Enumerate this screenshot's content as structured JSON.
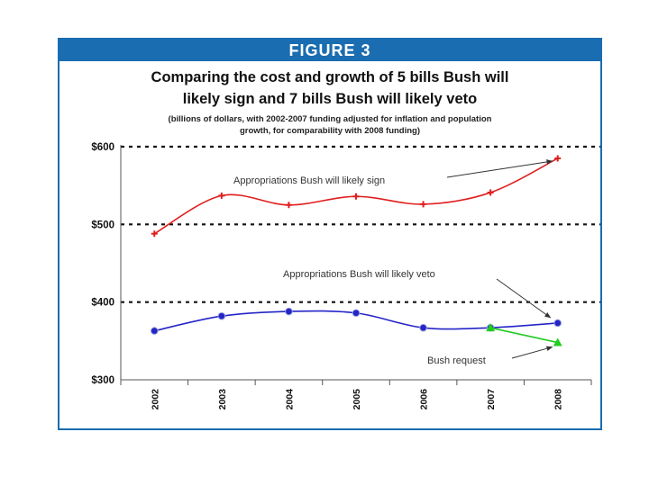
{
  "figure_label": "FIGURE 3",
  "chart_data": {
    "type": "line",
    "title_line1": "Comparing the cost and growth of 5 bills Bush will",
    "title_line2": "likely sign and 7 bills Bush will likely veto",
    "subtitle_line1": "(billions of dollars, with 2002-2007 funding adjusted for inflation and population",
    "subtitle_line2": "growth, for comparability with 2008 funding)",
    "x": [
      "2002",
      "2003",
      "2004",
      "2005",
      "2006",
      "2007",
      "2008"
    ],
    "ylim": [
      300,
      600
    ],
    "yticks": [
      {
        "value": 300,
        "label": "$300"
      },
      {
        "value": 400,
        "label": "$400"
      },
      {
        "value": 500,
        "label": "$500"
      },
      {
        "value": 600,
        "label": "$600"
      }
    ],
    "gridlines": [
      400,
      500,
      600
    ],
    "series": [
      {
        "name": "Appropriations Bush will likely sign",
        "color": "#e01e1e",
        "marker": "cross",
        "x": [
          "2002",
          "2003",
          "2004",
          "2005",
          "2006",
          "2007",
          "2008"
        ],
        "values": [
          488,
          537,
          525,
          536,
          526,
          541,
          585
        ]
      },
      {
        "name": "Appropriations Bush will likely  veto",
        "color": "#2424c8",
        "marker": "circle",
        "x": [
          "2002",
          "2003",
          "2004",
          "2005",
          "2006",
          "2007",
          "2008"
        ],
        "values": [
          363,
          382,
          388,
          386,
          367,
          367,
          373
        ]
      },
      {
        "name": "Bush request",
        "color": "#22cc22",
        "marker": "triangle",
        "x": [
          "2007",
          "2008"
        ],
        "values": [
          367,
          348
        ]
      }
    ],
    "annotations": {
      "sign": "Appropriations Bush will likely sign",
      "veto": "Appropriations Bush will likely  veto",
      "request": "Bush request"
    }
  }
}
